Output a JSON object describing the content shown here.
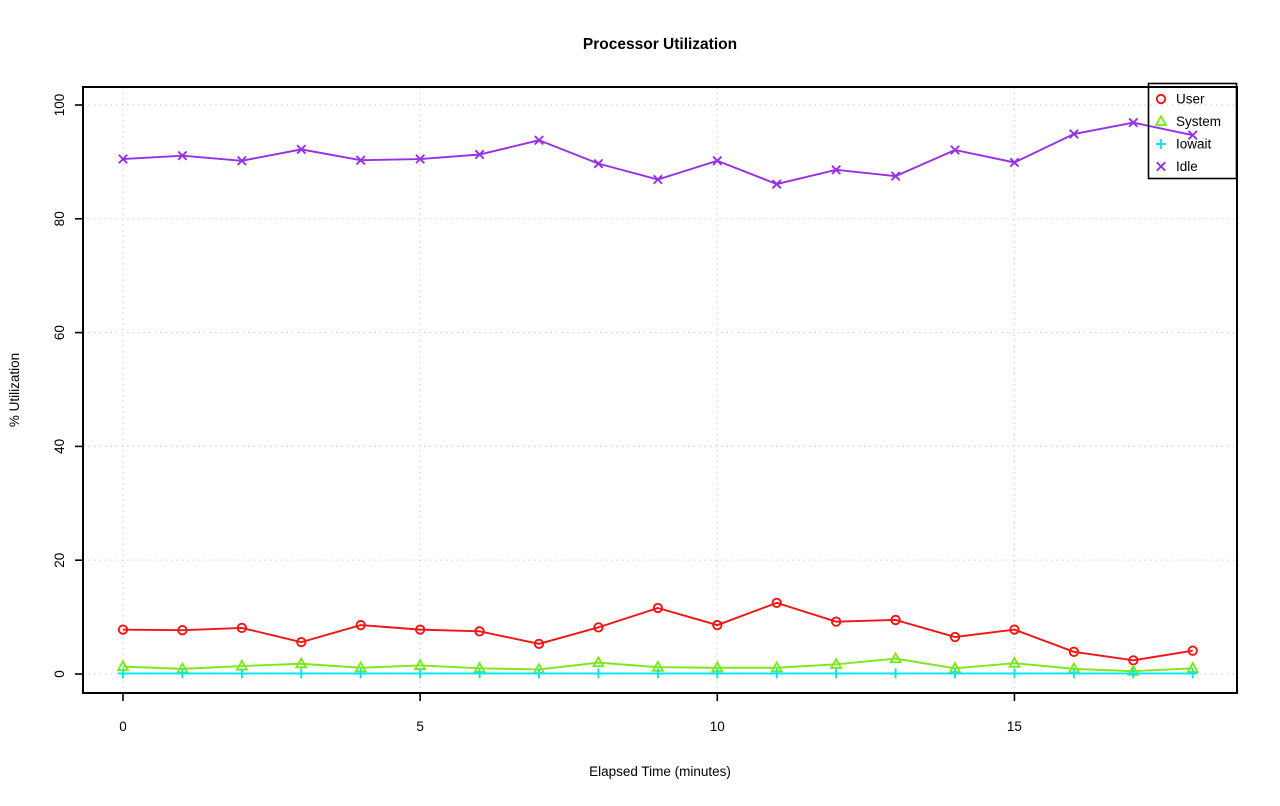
{
  "chart_data": {
    "type": "line",
    "title": "Processor Utilization",
    "xlabel": "Elapsed Time (minutes)",
    "ylabel": "% Utilization",
    "x": [
      0,
      1,
      2,
      3,
      4,
      5,
      6,
      7,
      8,
      9,
      10,
      11,
      12,
      13,
      14,
      15,
      16,
      17,
      18
    ],
    "xticks": [
      0,
      5,
      10,
      15
    ],
    "yticks": [
      0,
      20,
      40,
      60,
      80,
      100
    ],
    "xlim": [
      -0.7,
      18.75
    ],
    "ylim": [
      -3.3,
      103.3
    ],
    "grid": true,
    "grid_style": "dotted",
    "grid_color": "#d2d2d2",
    "series": [
      {
        "name": "User",
        "marker": "circle",
        "color": "#f41414",
        "values": [
          7.8,
          7.7,
          8.1,
          5.6,
          8.6,
          7.8,
          7.5,
          5.3,
          8.2,
          11.6,
          8.6,
          12.5,
          9.2,
          9.5,
          6.5,
          7.8,
          3.9,
          2.4,
          4.1
        ]
      },
      {
        "name": "System",
        "marker": "triangle",
        "color": "#7ce81a",
        "values": [
          1.3,
          0.9,
          1.4,
          1.8,
          1.1,
          1.5,
          1.0,
          0.8,
          2.0,
          1.2,
          1.1,
          1.1,
          1.7,
          2.7,
          1.0,
          1.9,
          0.9,
          0.5,
          1.0
        ]
      },
      {
        "name": "Iowait",
        "marker": "plus",
        "color": "#00e6f0",
        "values": [
          0.1,
          0.1,
          0.1,
          0.1,
          0.1,
          0.1,
          0.1,
          0.1,
          0.1,
          0.1,
          0.1,
          0.1,
          0.1,
          0.1,
          0.1,
          0.1,
          0.1,
          0.1,
          0.1
        ]
      },
      {
        "name": "Idle",
        "marker": "x",
        "color": "#9531e6",
        "values": [
          90.5,
          91.1,
          90.2,
          92.2,
          90.3,
          90.5,
          91.3,
          93.8,
          89.7,
          86.9,
          90.2,
          86.1,
          88.6,
          87.5,
          92.1,
          89.9,
          94.9,
          96.9,
          94.7
        ]
      }
    ],
    "legend": {
      "position": "top-right",
      "entries": [
        "User",
        "System",
        "Iowait",
        "Idle"
      ]
    }
  }
}
